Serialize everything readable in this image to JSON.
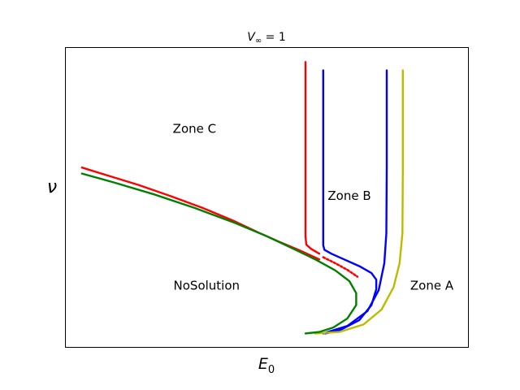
{
  "chart_data": {
    "type": "line",
    "title": "V∞ = 1",
    "title_parts": {
      "base": "V",
      "sub": "∞",
      "rest": " = 1"
    },
    "xlabel": "E₀",
    "xlabel_parts": {
      "base": "E",
      "sub": "0"
    },
    "ylabel": "ν",
    "xticks": false,
    "yticks": false,
    "grid": false,
    "xlim": [
      0,
      100
    ],
    "ylim": [
      0,
      100
    ],
    "series": [
      {
        "name": "",
        "color": "#ff0000",
        "style": "solid",
        "points": [
          [
            59.6,
            95.3
          ],
          [
            59.6,
            80
          ],
          [
            59.6,
            60
          ],
          [
            59.6,
            37
          ],
          [
            59.8,
            34.2
          ],
          [
            61,
            32.8
          ],
          [
            63,
            31.2
          ]
        ]
      },
      {
        "name": "",
        "color": "#ff0000",
        "style": "solid",
        "points": [
          [
            4,
            60
          ],
          [
            10,
            57.5
          ],
          [
            18,
            54.2
          ],
          [
            26,
            50.5
          ],
          [
            34,
            46.5
          ],
          [
            42,
            42
          ],
          [
            48,
            38.2
          ],
          [
            53,
            35.2
          ],
          [
            58,
            32.4
          ],
          [
            63,
            29.3
          ]
        ]
      },
      {
        "name": "",
        "color": "#ff0000",
        "style": "dotted",
        "points": [
          [
            64,
            30
          ],
          [
            67,
            28
          ],
          [
            70,
            25.8
          ],
          [
            72.5,
            23.5
          ]
        ]
      },
      {
        "name": "",
        "color": "#0000ff",
        "style": "solid",
        "points": [
          [
            64,
            92.5
          ],
          [
            64,
            80
          ],
          [
            64,
            60
          ],
          [
            64,
            34
          ],
          [
            64.3,
            32.5
          ],
          [
            66,
            31.2
          ],
          [
            69,
            29.4
          ],
          [
            73,
            27
          ],
          [
            76,
            24.7
          ],
          [
            77.2,
            22.5
          ],
          [
            77.2,
            19.3
          ],
          [
            76,
            14
          ],
          [
            73,
            9
          ],
          [
            68,
            5.5
          ],
          [
            64.5,
            4.5
          ]
        ]
      },
      {
        "name": "",
        "color": "#0000ff",
        "style": "solid",
        "points": [
          [
            79.8,
            92.5
          ],
          [
            79.8,
            80
          ],
          [
            79.8,
            60
          ],
          [
            79.7,
            38
          ],
          [
            79.2,
            28
          ],
          [
            77.8,
            19
          ],
          [
            75,
            12
          ],
          [
            70,
            7
          ],
          [
            64,
            4.5
          ]
        ]
      },
      {
        "name": "",
        "color": "#bbbb00",
        "style": "solid",
        "points": [
          [
            83.8,
            92.5
          ],
          [
            83.8,
            80
          ],
          [
            83.8,
            60
          ],
          [
            83.7,
            38
          ],
          [
            83,
            28
          ],
          [
            81.5,
            20
          ],
          [
            78.5,
            12.5
          ],
          [
            74,
            7.5
          ],
          [
            68,
            5
          ],
          [
            62,
            4.5
          ]
        ]
      },
      {
        "name": "",
        "color": "#008000",
        "style": "solid",
        "points": [
          [
            4,
            58
          ],
          [
            12,
            55
          ],
          [
            22,
            51
          ],
          [
            32,
            46.5
          ],
          [
            42,
            41.5
          ],
          [
            50,
            37
          ],
          [
            56,
            33.2
          ],
          [
            62,
            29.3
          ],
          [
            67,
            25.6
          ],
          [
            70.5,
            22
          ],
          [
            72.2,
            18
          ],
          [
            72.2,
            14
          ],
          [
            70,
            9.5
          ],
          [
            66.5,
            6.5
          ],
          [
            63,
            5
          ],
          [
            59.6,
            4.5
          ]
        ]
      }
    ],
    "annotations": [
      {
        "text": "Zone C",
        "x": 32,
        "y": 73
      },
      {
        "text": "Zone B",
        "x": 70.5,
        "y": 50.5
      },
      {
        "text": "NoSolution",
        "x": 35,
        "y": 20.5
      },
      {
        "text": "Zone A",
        "x": 91,
        "y": 20.5
      }
    ]
  }
}
